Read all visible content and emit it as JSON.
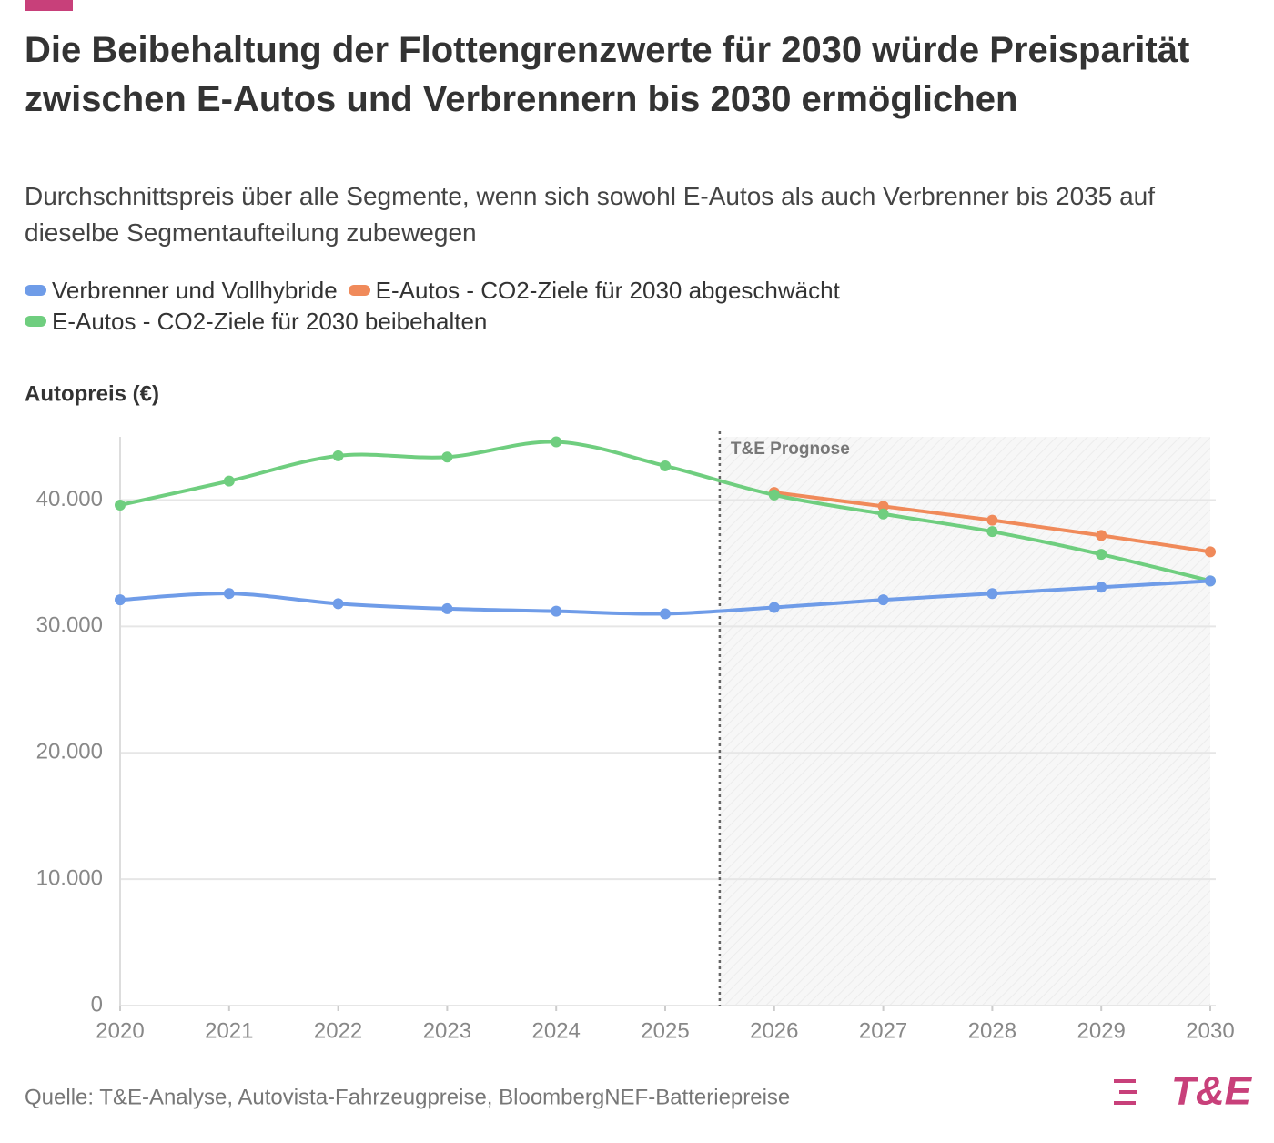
{
  "chart_data": {
    "type": "line",
    "title": "Die Beibehaltung der Flottengrenzwerte für 2030 würde Preisparität zwischen E-Autos und Verbrennern bis 2030 ermöglichen",
    "subtitle": "Durchschnittspreis über alle Segmente, wenn sich sowohl E-Autos als auch Verbrenner bis 2035 auf dieselbe Segmentaufteilung zubewegen",
    "y_label": "Autopreis (€)",
    "source": "Quelle: T&E-Analyse, Autovista-Fahrzeugpreise, BloombergNEF-Batteriepreise",
    "logo": "T&E",
    "annotation": {
      "text": "T&E Prognose",
      "x": 2025.5
    },
    "x": [
      2020,
      2021,
      2022,
      2023,
      2024,
      2025,
      2026,
      2027,
      2028,
      2029,
      2030
    ],
    "series": [
      {
        "name": "Verbrenner und Vollhybride",
        "color": "#6f9ce8",
        "values": [
          32100,
          32600,
          31800,
          31400,
          31200,
          31000,
          31500,
          32100,
          32600,
          33100,
          33600
        ]
      },
      {
        "name": "E-Autos - CO2-Ziele für 2030 abgeschwächt",
        "color": "#f08a5a",
        "values": [
          null,
          null,
          null,
          null,
          null,
          null,
          40600,
          39500,
          38400,
          37200,
          35900
        ]
      },
      {
        "name": "E-Autos - CO2-Ziele für 2030 beibehalten",
        "color": "#6fce7f",
        "values": [
          39600,
          41500,
          43500,
          43400,
          44600,
          42700,
          40400,
          38900,
          37500,
          35700,
          33600
        ]
      }
    ],
    "xlim": [
      2020,
      2030
    ],
    "xticks": [
      2020,
      2021,
      2022,
      2023,
      2024,
      2025,
      2026,
      2027,
      2028,
      2029,
      2030
    ],
    "ylim": [
      0,
      45000
    ],
    "yticks": [
      0,
      {
        "value": 10000,
        "label": "10.000"
      },
      {
        "value": 20000,
        "label": "20.000"
      },
      {
        "value": 30000,
        "label": "30.000"
      },
      {
        "value": 40000,
        "label": "40.000"
      }
    ],
    "grid": true
  }
}
